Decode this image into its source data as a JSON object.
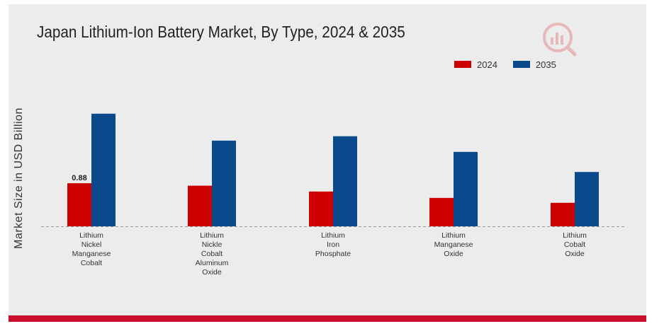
{
  "page": {
    "panel_color": "#ececec",
    "accent_bar_color": "#c8102e"
  },
  "chart_data": {
    "type": "bar",
    "title": "Japan Lithium-Ion Battery Market, By Type, 2024 & 2035",
    "xlabel": "",
    "ylabel": "Market Size in USD Billion",
    "categories": [
      [
        "Lithium",
        "Nickel",
        "Manganese",
        "Cobalt"
      ],
      [
        "Lithium",
        "Nickle",
        "Cobalt",
        "Aluminum",
        "Oxide"
      ],
      [
        "Lithium",
        "Iron",
        "Phosphate"
      ],
      [
        "Lithium",
        "Manganese",
        "Oxide"
      ],
      [
        "Lithium",
        "Cobalt",
        "Oxide"
      ]
    ],
    "series": [
      {
        "name": "2024",
        "color": "#cc0000",
        "values": [
          0.88,
          0.83,
          0.71,
          0.58,
          0.48
        ]
      },
      {
        "name": "2035",
        "color": "#0a4a8c",
        "values": [
          2.3,
          1.75,
          1.84,
          1.52,
          1.11
        ]
      }
    ],
    "data_labels": [
      {
        "series": 0,
        "index": 0,
        "text": "0.88"
      }
    ],
    "ylim": [
      0,
      2.6
    ],
    "grid": false,
    "baseline_style": "dashed",
    "legend_position": "top-right"
  }
}
